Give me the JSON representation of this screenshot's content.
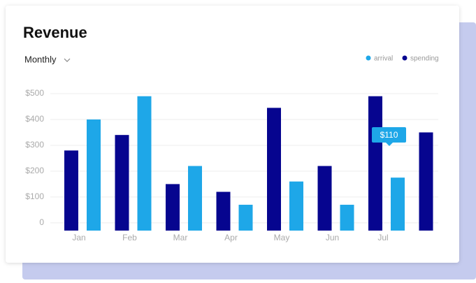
{
  "chart_data": {
    "type": "bar",
    "title": "Revenue",
    "period": "Monthly",
    "categories": [
      "Jan",
      "Feb",
      "Mar",
      "Apr",
      "May",
      "Jun",
      "Jul",
      null
    ],
    "series": [
      {
        "name": "spending",
        "color": "#06058f",
        "values": [
          280,
          340,
          150,
          120,
          445,
          220,
          490,
          350
        ]
      },
      {
        "name": "arrival",
        "color": "#1ea7e8",
        "values": [
          400,
          490,
          220,
          70,
          160,
          70,
          175,
          null
        ]
      }
    ],
    "legend_order": [
      1,
      0
    ],
    "ylim": [
      -30,
      500
    ],
    "yticks": [
      {
        "value": 0,
        "label": "0"
      },
      {
        "value": 100,
        "label": "$100"
      },
      {
        "value": 200,
        "label": "$200"
      },
      {
        "value": 300,
        "label": "$300"
      },
      {
        "value": 400,
        "label": "$400"
      },
      {
        "value": 500,
        "label": "$500"
      }
    ],
    "grid": true,
    "tooltip": "$110"
  }
}
